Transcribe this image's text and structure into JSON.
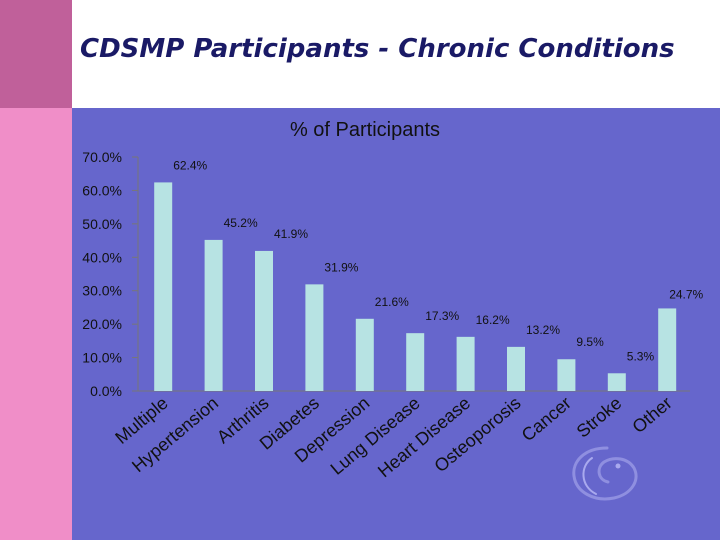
{
  "slide": {
    "title": "CDSMP Participants - Chronic Conditions"
  },
  "colors": {
    "bar": "#b7e3e3",
    "background": "#6666cc",
    "title": "#1a1a66"
  },
  "chart_data": {
    "type": "bar",
    "title": "",
    "ylabel": "% of Participants",
    "xlabel": "",
    "categories": [
      "Multiple",
      "Hypertension",
      "Arthritis",
      "Diabetes",
      "Depression",
      "Lung Disease",
      "Heart Disease",
      "Osteoporosis",
      "Cancer",
      "Stroke",
      "Other"
    ],
    "values": [
      62.4,
      45.2,
      41.9,
      31.9,
      21.6,
      17.3,
      16.2,
      13.2,
      9.5,
      5.3,
      24.7
    ],
    "value_labels": [
      "62.4%",
      "45.2%",
      "41.9%",
      "31.9%",
      "21.6%",
      "17.3%",
      "16.2%",
      "13.2%",
      "9.5%",
      "5.3%",
      "24.7%"
    ],
    "yticks": [
      "0.0%",
      "10.0%",
      "20.0%",
      "30.0%",
      "40.0%",
      "50.0%",
      "60.0%",
      "70.0%"
    ],
    "ylim": [
      0,
      70
    ],
    "grid": false,
    "legend": "none"
  }
}
